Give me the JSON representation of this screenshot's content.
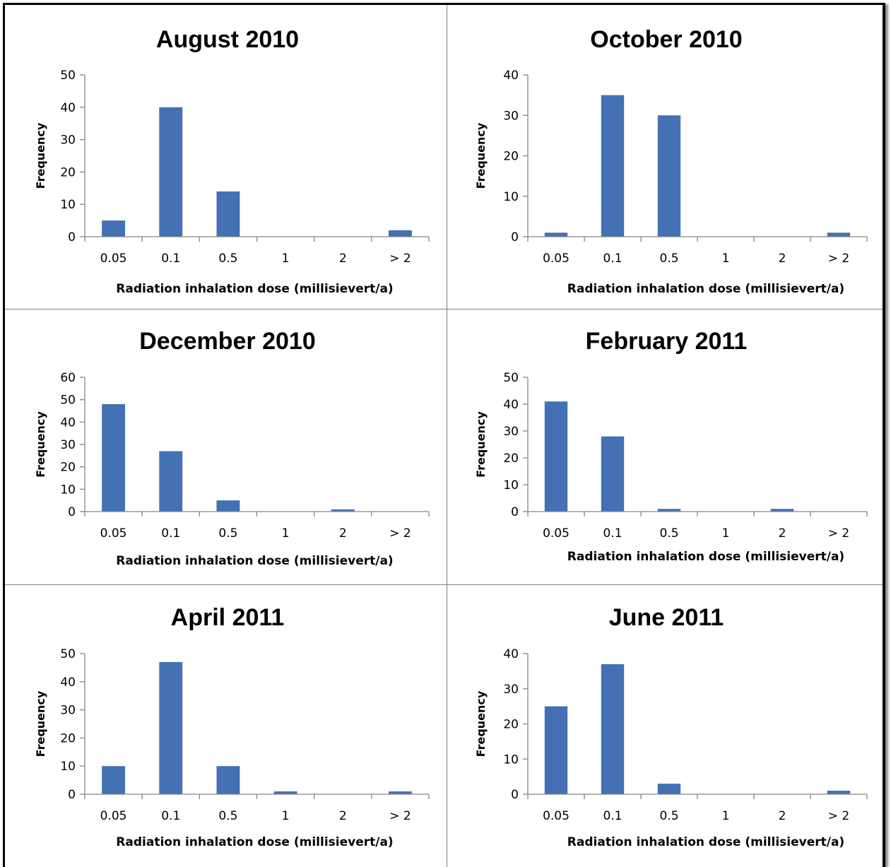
{
  "chart_data": [
    {
      "type": "bar",
      "title": "August 2010",
      "xlabel": "Radiation inhalation dose (millisievert/a)",
      "ylabel": "Frequency",
      "categories": [
        "0.05",
        "0.1",
        "0.5",
        "1",
        "2",
        "> 2"
      ],
      "values": [
        5,
        40,
        14,
        0,
        0,
        2
      ],
      "ylim": [
        0,
        50
      ],
      "yticks": [
        0,
        10,
        20,
        30,
        40,
        50
      ],
      "grid": false,
      "color": "#4471b4"
    },
    {
      "type": "bar",
      "title": "October 2010",
      "xlabel": "Radiation inhalation dose (millisievert/a)",
      "ylabel": "Frequency",
      "categories": [
        "0.05",
        "0.1",
        "0.5",
        "1",
        "2",
        "> 2"
      ],
      "values": [
        1,
        35,
        30,
        0,
        0,
        1
      ],
      "ylim": [
        0,
        40
      ],
      "yticks": [
        0,
        10,
        20,
        30,
        40
      ],
      "grid": false,
      "color": "#4471b4"
    },
    {
      "type": "bar",
      "title": "December 2010",
      "xlabel": "Radiation inhalation dose (millisievert/a)",
      "ylabel": "Frequency",
      "categories": [
        "0.05",
        "0.1",
        "0.5",
        "1",
        "2",
        "> 2"
      ],
      "values": [
        48,
        27,
        5,
        0,
        1,
        0
      ],
      "ylim": [
        0,
        60
      ],
      "yticks": [
        0,
        10,
        20,
        30,
        40,
        50,
        60
      ],
      "grid": false,
      "color": "#4471b4"
    },
    {
      "type": "bar",
      "title": "February 2011",
      "xlabel": "Radiation inhalation dose (millisievert/a)",
      "ylabel": "Frequency",
      "categories": [
        "0.05",
        "0.1",
        "0.5",
        "1",
        "2",
        "> 2"
      ],
      "values": [
        41,
        28,
        1,
        0,
        1,
        0
      ],
      "ylim": [
        0,
        50
      ],
      "yticks": [
        0,
        10,
        20,
        30,
        40,
        50
      ],
      "grid": false,
      "color": "#4471b4"
    },
    {
      "type": "bar",
      "title": "April 2011",
      "xlabel": "Radiation inhalation dose (millisievert/a)",
      "ylabel": "Frequency",
      "categories": [
        "0.05",
        "0.1",
        "0.5",
        "1",
        "2",
        "> 2"
      ],
      "values": [
        10,
        47,
        10,
        1,
        0,
        1
      ],
      "ylim": [
        0,
        50
      ],
      "yticks": [
        0,
        10,
        20,
        30,
        40,
        50
      ],
      "grid": false,
      "color": "#4471b4"
    },
    {
      "type": "bar",
      "title": "June 2011",
      "xlabel": "Radiation inhalation dose (millisievert/a)",
      "ylabel": "Frequency",
      "categories": [
        "0.05",
        "0.1",
        "0.5",
        "1",
        "2",
        "> 2"
      ],
      "values": [
        25,
        37,
        3,
        0,
        0,
        1
      ],
      "ylim": [
        0,
        40
      ],
      "yticks": [
        0,
        10,
        20,
        30,
        40
      ],
      "grid": false,
      "color": "#4471b4"
    }
  ]
}
